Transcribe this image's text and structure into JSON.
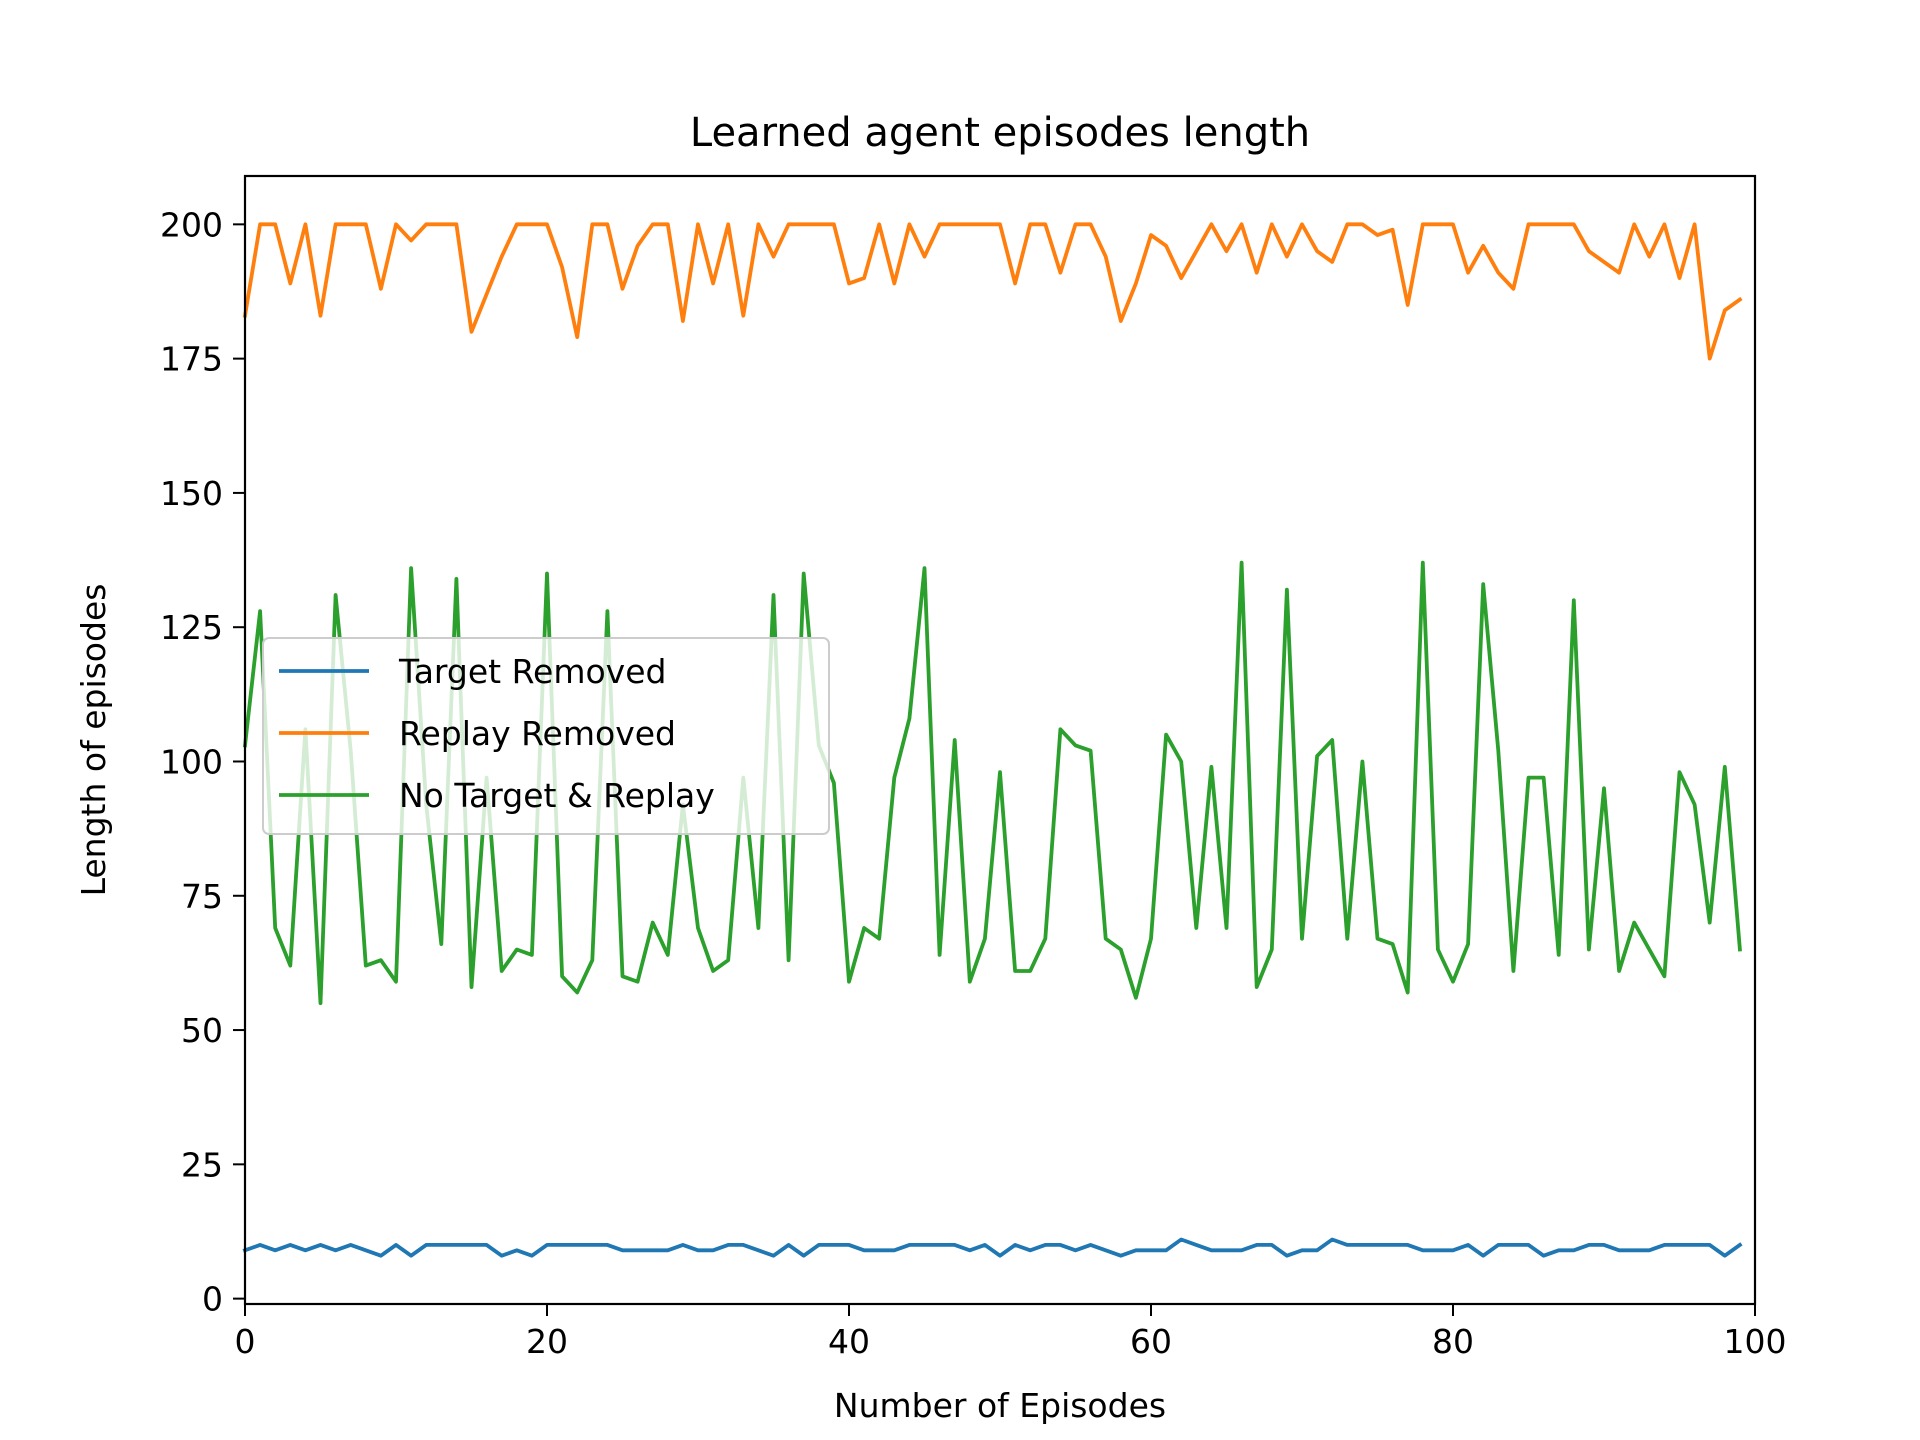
{
  "chart_data": {
    "type": "line",
    "title": "Learned agent episodes length",
    "xlabel": "Number of Episodes",
    "ylabel": "Length of episodes",
    "xlim": [
      0,
      100
    ],
    "ylim": [
      -1,
      209
    ],
    "xticks": [
      0,
      20,
      40,
      60,
      80,
      100
    ],
    "yticks": [
      0,
      25,
      50,
      75,
      100,
      125,
      150,
      175,
      200
    ],
    "grid": false,
    "legend_position": "center-left",
    "x": [
      0,
      1,
      2,
      3,
      4,
      5,
      6,
      7,
      8,
      9,
      10,
      11,
      12,
      13,
      14,
      15,
      16,
      17,
      18,
      19,
      20,
      21,
      22,
      23,
      24,
      25,
      26,
      27,
      28,
      29,
      30,
      31,
      32,
      33,
      34,
      35,
      36,
      37,
      38,
      39,
      40,
      41,
      42,
      43,
      44,
      45,
      46,
      47,
      48,
      49,
      50,
      51,
      52,
      53,
      54,
      55,
      56,
      57,
      58,
      59,
      60,
      61,
      62,
      63,
      64,
      65,
      66,
      67,
      68,
      69,
      70,
      71,
      72,
      73,
      74,
      75,
      76,
      77,
      78,
      79,
      80,
      81,
      82,
      83,
      84,
      85,
      86,
      87,
      88,
      89,
      90,
      91,
      92,
      93,
      94,
      95,
      96,
      97,
      98,
      99
    ],
    "series": [
      {
        "name": "Target Removed",
        "color": "#1f77b4",
        "values": [
          9,
          10,
          9,
          10,
          9,
          10,
          9,
          10,
          9,
          8,
          10,
          8,
          10,
          10,
          10,
          10,
          10,
          8,
          9,
          8,
          10,
          10,
          10,
          10,
          10,
          9,
          9,
          9,
          9,
          10,
          9,
          9,
          10,
          10,
          9,
          8,
          10,
          8,
          10,
          10,
          10,
          9,
          9,
          9,
          10,
          10,
          10,
          10,
          9,
          10,
          8,
          10,
          9,
          10,
          10,
          9,
          10,
          9,
          8,
          9,
          9,
          9,
          11,
          10,
          9,
          9,
          9,
          10,
          10,
          8,
          9,
          9,
          11,
          10,
          10,
          10,
          10,
          10,
          9,
          9,
          9,
          10,
          8,
          10,
          10,
          10,
          8,
          9,
          9,
          10,
          10,
          9,
          9,
          9,
          10,
          10,
          10,
          10,
          8,
          10
        ]
      },
      {
        "name": "Replay Removed",
        "color": "#ff7f0e",
        "values": [
          183,
          200,
          200,
          189,
          200,
          183,
          200,
          200,
          200,
          188,
          200,
          197,
          200,
          200,
          200,
          180,
          187,
          194,
          200,
          200,
          200,
          192,
          179,
          200,
          200,
          188,
          196,
          200,
          200,
          182,
          200,
          189,
          200,
          183,
          200,
          194,
          200,
          200,
          200,
          200,
          189,
          190,
          200,
          189,
          200,
          194,
          200,
          200,
          200,
          200,
          200,
          189,
          200,
          200,
          191,
          200,
          200,
          194,
          182,
          189,
          198,
          196,
          190,
          195,
          200,
          195,
          200,
          191,
          200,
          194,
          200,
          195,
          193,
          200,
          200,
          198,
          199,
          185,
          200,
          200,
          200,
          191,
          196,
          191,
          188,
          200,
          200,
          200,
          200,
          195,
          193,
          191,
          200,
          194,
          200,
          190,
          200,
          175,
          184,
          186
        ]
      },
      {
        "name": "No Target & Replay",
        "color": "#2ca02c",
        "values": [
          103,
          128,
          69,
          62,
          106,
          55,
          131,
          102,
          62,
          63,
          59,
          136,
          92,
          66,
          134,
          58,
          97,
          61,
          65,
          64,
          135,
          60,
          57,
          63,
          128,
          60,
          59,
          70,
          64,
          92,
          69,
          61,
          63,
          97,
          69,
          131,
          63,
          135,
          103,
          96,
          59,
          69,
          67,
          97,
          108,
          136,
          64,
          104,
          59,
          67,
          98,
          61,
          61,
          67,
          106,
          103,
          102,
          67,
          65,
          56,
          67,
          105,
          100,
          69,
          99,
          69,
          137,
          58,
          65,
          132,
          67,
          101,
          104,
          67,
          100,
          67,
          66,
          57,
          137,
          65,
          59,
          66,
          133,
          102,
          61,
          97,
          97,
          64,
          130,
          65,
          95,
          61,
          70,
          65,
          60,
          98,
          92,
          70,
          99,
          65
        ]
      }
    ]
  }
}
